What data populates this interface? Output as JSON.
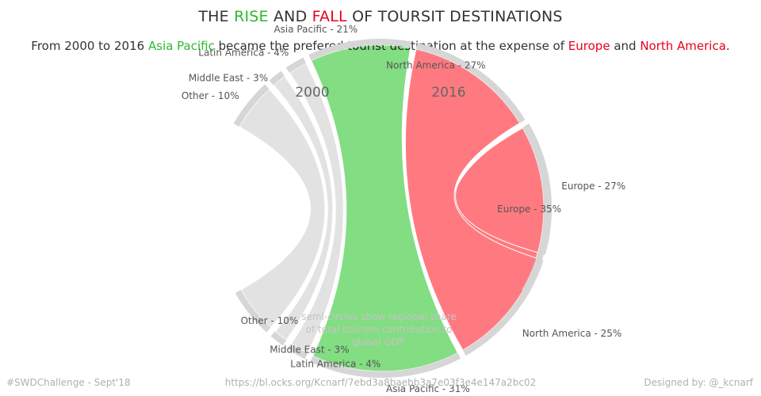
{
  "title": {
    "part1": "THE ",
    "rise": "RISE",
    "part2": " AND ",
    "fall": "FALL",
    "part3": " OF TOURSIT DESTINATIONS"
  },
  "subtitle": {
    "part1": "From 2000 to 2016 ",
    "asia": "Asia Pacific",
    "part2": " became the prefered tourist destination at the expense of ",
    "europe": "Europe",
    "part3": " and ",
    "north_america": "North America",
    "part4": "."
  },
  "colors": {
    "rise": "#2fb82f",
    "fall": "#e8001c",
    "rise_fill": "#7edc7e",
    "fall_fill": "#ff7a80",
    "other_fill": "#e2e2e2",
    "arc": "#d6d6d6"
  },
  "chart_data": {
    "type": "chord",
    "year_labels": [
      "2000",
      "2016"
    ],
    "regions": [
      {
        "name": "Europe",
        "share_2000": 35,
        "share_2016": 27,
        "label_2000": "Europe - 35%",
        "label_2016": "Europe - 27%",
        "trend": "fall"
      },
      {
        "name": "North America",
        "share_2000": 27,
        "share_2016": 25,
        "label_2000": "North America - 27%",
        "label_2016": "North America - 25%",
        "trend": "fall"
      },
      {
        "name": "Asia Pacific",
        "share_2000": 21,
        "share_2016": 31,
        "label_2000": "Asia Pacific - 21%",
        "label_2016": "Asia Pacific - 31%",
        "trend": "rise"
      },
      {
        "name": "Latin America",
        "share_2000": 4,
        "share_2016": 4,
        "label_2000": "Latin America - 4%",
        "label_2016": "Latin America - 4%",
        "trend": "flat"
      },
      {
        "name": "Middle East",
        "share_2000": 3,
        "share_2016": 3,
        "label_2000": "Middle East - 3%",
        "label_2016": "Middle East - 3%",
        "trend": "flat"
      },
      {
        "name": "Other",
        "share_2000": 10,
        "share_2016": 10,
        "label_2000": "Other - 10%",
        "label_2016": "Other - 10%",
        "trend": "flat"
      }
    ],
    "annotation": [
      "semi-circles show regional share",
      "of total tourism contribution to",
      "global GDP."
    ]
  },
  "footer": {
    "left": "#SWDChallenge - Sept'18",
    "center": "https://bl.ocks.org/Kcnarf/7ebd3a8baebb3a7e03f3e4e147a2bc02",
    "right": "Designed by: @_kcnarf"
  }
}
